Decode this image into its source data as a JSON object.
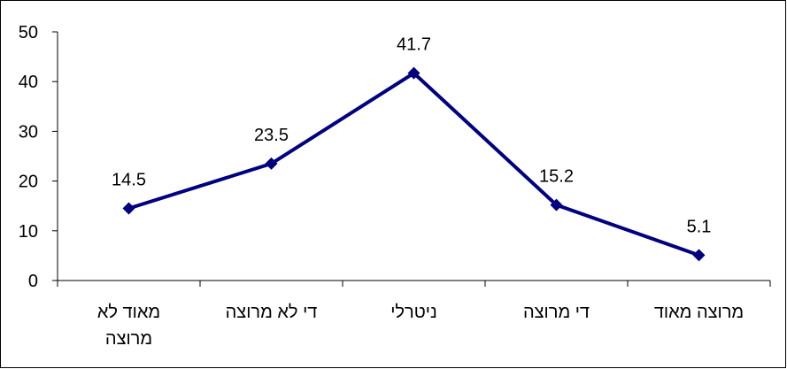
{
  "chart_data": {
    "type": "line",
    "categories": [
      "מאוד לא\nמרוצה",
      "די לא מרוצה",
      "ניטרלי",
      "די מרוצה",
      "מרוצה מאוד"
    ],
    "values": [
      14.5,
      23.5,
      41.7,
      15.2,
      5.1
    ],
    "color": "#000080",
    "ylim": [
      0,
      50
    ],
    "yticks": [
      0,
      10,
      20,
      30,
      40,
      50
    ],
    "grid": false
  }
}
